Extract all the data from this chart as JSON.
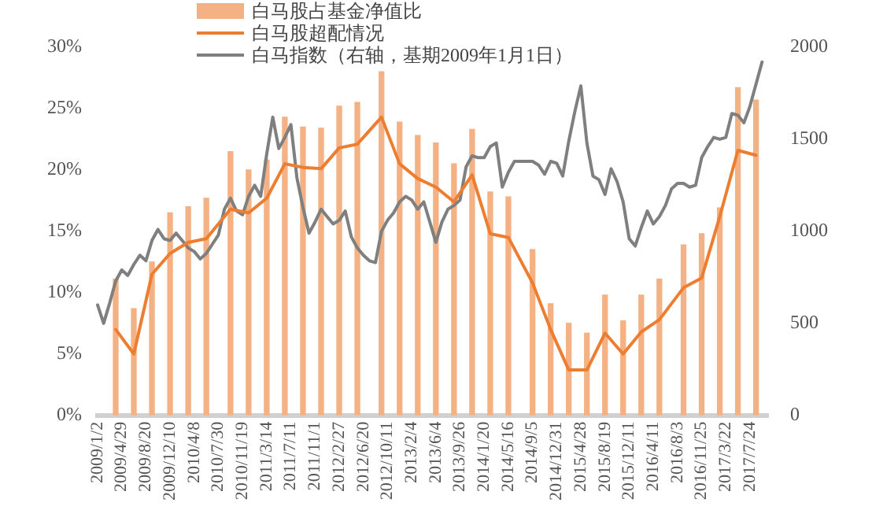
{
  "chart_data": {
    "type": "bar",
    "legend": "top",
    "marker": "none",
    "categories": [
      "2009/1/2",
      null,
      null,
      null,
      "2009/4/29",
      null,
      null,
      null,
      "2009/8/20",
      null,
      null,
      null,
      "2009/12/10",
      null,
      null,
      null,
      "2010/4/8",
      null,
      null,
      null,
      "2010/7/30",
      null,
      null,
      null,
      "2010/11/19",
      null,
      null,
      null,
      "2011/3/14",
      null,
      null,
      null,
      "2011/7/11",
      null,
      null,
      null,
      "2011/11/1",
      null,
      null,
      null,
      "2012/2/27",
      null,
      null,
      null,
      "2012/6/20",
      null,
      null,
      null,
      "2012/10/11",
      null,
      null,
      null,
      "2013/2/4",
      null,
      null,
      null,
      "2013/6/4",
      null,
      null,
      null,
      "2013/9/26",
      null,
      null,
      null,
      "2014/1/20",
      null,
      null,
      null,
      "2014/5/16",
      null,
      null,
      null,
      "2014/9/5",
      null,
      null,
      null,
      "2014/12/31",
      null,
      null,
      null,
      "2015/4/28",
      null,
      null,
      null,
      "2015/8/19",
      null,
      null,
      null,
      "2015/12/11",
      null,
      null,
      null,
      "2016/4/11",
      null,
      null,
      null,
      "2016/8/3",
      null,
      null,
      null,
      "2016/11/25",
      null,
      null,
      null,
      "2017/3/22",
      null,
      null,
      null,
      "2017/7/24",
      null,
      null,
      null
    ],
    "ylim": [
      0,
      30
    ],
    "yticks": [
      {
        "value": 0,
        "label": "0%"
      },
      {
        "value": 5,
        "label": "5%"
      },
      {
        "value": 10,
        "label": "10%"
      },
      {
        "value": 15,
        "label": "15%"
      },
      {
        "value": 20,
        "label": "20%"
      },
      {
        "value": 25,
        "label": "25%"
      },
      {
        "value": 30,
        "label": "30%"
      }
    ],
    "y2lim": [
      0,
      2000
    ],
    "y2ticks": [
      0,
      500,
      1000,
      1500,
      2000
    ],
    "series": [
      {
        "name": "白马股占基金净值比",
        "color": "#f4b183",
        "values": [
          null,
          null,
          null,
          11.1,
          null,
          null,
          8.7,
          null,
          null,
          12.5,
          null,
          null,
          16.5,
          null,
          null,
          17.0,
          null,
          null,
          17.7,
          null,
          null,
          null,
          21.5,
          null,
          null,
          20.0,
          null,
          null,
          20.8,
          null,
          null,
          24.3,
          null,
          null,
          23.5,
          null,
          null,
          23.4,
          null,
          null,
          25.2,
          null,
          null,
          25.5,
          null,
          null,
          null,
          28.0,
          null,
          null,
          23.9,
          null,
          null,
          22.8,
          null,
          null,
          22.2,
          null,
          null,
          20.5,
          null,
          null,
          23.3,
          null,
          null,
          18.2,
          null,
          null,
          17.8,
          null,
          null,
          null,
          13.5,
          null,
          null,
          9.1,
          null,
          null,
          7.5,
          null,
          null,
          6.7,
          null,
          null,
          9.8,
          null,
          null,
          7.7,
          null,
          null,
          9.8,
          null,
          null,
          11.1,
          null,
          null,
          null,
          13.9,
          null,
          null,
          14.8,
          null,
          null,
          16.9,
          null,
          null,
          26.7,
          null,
          null,
          25.7,
          null,
          null
        ]
      },
      {
        "name": "白马股超配情况",
        "type": "line",
        "color": "#ed7d31",
        "values": [
          null,
          null,
          null,
          7.0,
          null,
          null,
          5.0,
          null,
          null,
          11.5,
          null,
          null,
          13.2,
          null,
          null,
          14.1,
          null,
          null,
          14.4,
          null,
          null,
          null,
          16.8,
          null,
          null,
          16.5,
          null,
          null,
          17.7,
          null,
          null,
          20.5,
          null,
          null,
          20.2,
          null,
          null,
          20.1,
          null,
          null,
          21.8,
          null,
          null,
          22.1,
          null,
          null,
          null,
          24.3,
          null,
          null,
          20.5,
          null,
          null,
          19.3,
          null,
          null,
          18.6,
          null,
          null,
          17.4,
          null,
          null,
          19.6,
          null,
          null,
          14.8,
          null,
          null,
          14.5,
          null,
          null,
          null,
          10.8,
          null,
          null,
          7.0,
          null,
          null,
          3.7,
          null,
          null,
          3.7,
          null,
          null,
          6.7,
          null,
          null,
          5.0,
          null,
          null,
          6.8,
          null,
          null,
          7.8,
          null,
          null,
          null,
          10.4,
          null,
          null,
          11.2,
          null,
          null,
          16.2,
          null,
          null,
          21.6,
          null,
          null,
          21.2,
          null,
          null
        ]
      },
      {
        "name": "白马指数（右轴，基期2009年1月1日）",
        "type": "line",
        "axis": "y2",
        "color": "#7f7f7f",
        "values": [
          600,
          500,
          610,
          730,
          790,
          760,
          820,
          870,
          840,
          950,
          1010,
          960,
          950,
          990,
          950,
          910,
          890,
          850,
          880,
          930,
          980,
          1120,
          1180,
          1110,
          1090,
          1190,
          1250,
          1190,
          1420,
          1620,
          1450,
          1510,
          1580,
          1290,
          1130,
          990,
          1050,
          1120,
          1080,
          1040,
          1060,
          1110,
          970,
          910,
          870,
          840,
          830,
          1000,
          1060,
          1100,
          1160,
          1190,
          1170,
          1120,
          1160,
          1050,
          940,
          1050,
          1120,
          1140,
          1170,
          1350,
          1410,
          1400,
          1400,
          1460,
          1480,
          1240,
          1320,
          1380,
          1380,
          1380,
          1380,
          1360,
          1310,
          1380,
          1370,
          1300,
          1490,
          1650,
          1790,
          1480,
          1300,
          1280,
          1200,
          1340,
          1270,
          1160,
          960,
          920,
          1020,
          1110,
          1040,
          1080,
          1140,
          1230,
          1260,
          1260,
          1240,
          1250,
          1400,
          1460,
          1510,
          1500,
          1510,
          1640,
          1630,
          1590,
          1680,
          1800,
          1920,
          null
        ]
      }
    ]
  }
}
